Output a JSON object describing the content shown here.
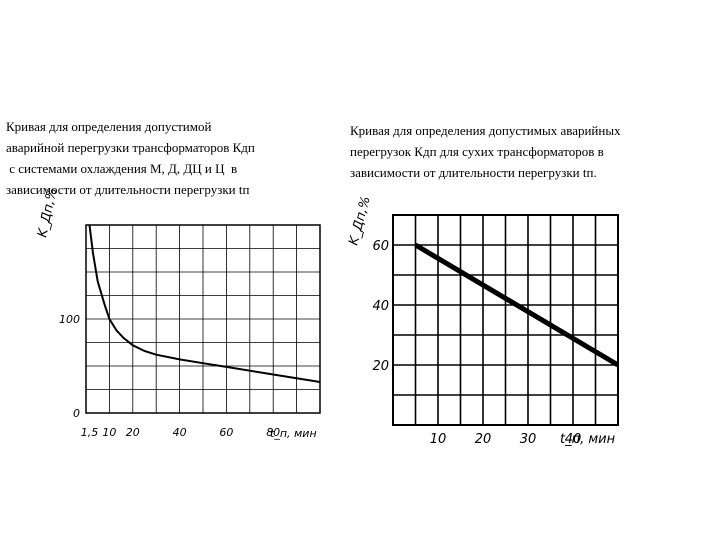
{
  "captions": {
    "left": [
      "Кривая для определения допустимой",
      "аварийной перегрузки трансформаторов Кдп",
      " с системами охлаждения М, Д, ДЦ и Ц  в",
      "зависимости от длительности перегрузки tп"
    ],
    "right": [
      "Кривая для определения допустимых аварийных",
      "перегрузок Кдп для сухих трансформаторов в",
      "зависимости от длительности перегрузки tп."
    ]
  },
  "chart_data": [
    {
      "type": "line",
      "ylabel": "K_Дп,%",
      "xlabel": "t_п, мин",
      "x_ticks": [
        "1,5",
        "10",
        "20",
        "40",
        "60",
        "80"
      ],
      "y_ticks": [
        "0",
        "100"
      ],
      "xlim": [
        0,
        100
      ],
      "ylim": [
        0,
        200
      ],
      "grid": true,
      "x": [
        1.5,
        3,
        5,
        8,
        10,
        13,
        16,
        20,
        25,
        30,
        40,
        50,
        60,
        70,
        80,
        90,
        100
      ],
      "y": [
        200,
        170,
        140,
        115,
        100,
        88,
        80,
        72,
        66,
        62,
        57,
        53,
        49,
        45,
        41,
        37,
        33
      ]
    },
    {
      "type": "line",
      "ylabel": "K_Дп,%",
      "xlabel": "t_п, мин",
      "x_ticks": [
        "10",
        "20",
        "30",
        "40"
      ],
      "y_ticks": [
        "20",
        "40",
        "60"
      ],
      "xlim": [
        0,
        50
      ],
      "ylim": [
        0,
        70
      ],
      "grid": true,
      "x": [
        5,
        50
      ],
      "y": [
        60,
        20
      ]
    }
  ]
}
